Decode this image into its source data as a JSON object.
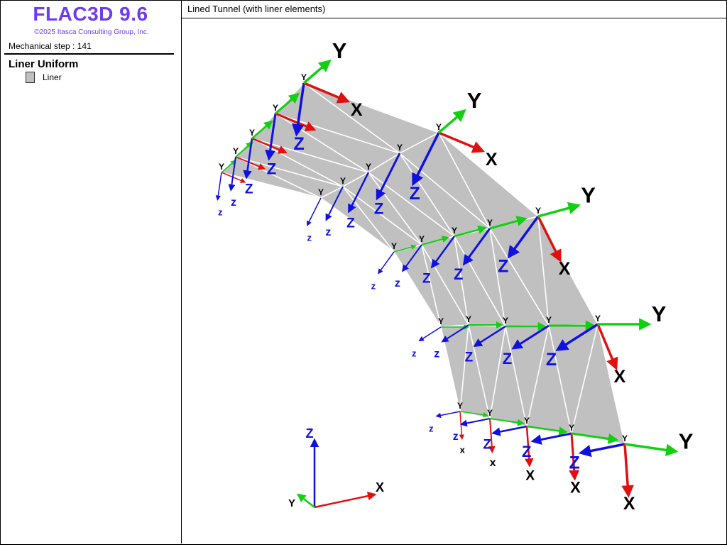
{
  "app": {
    "title": "FLAC3D 9.6",
    "copyright": "©2025 Itasca Consulting Group, Inc."
  },
  "sidebar": {
    "mechanical_step": "Mechanical step : 141",
    "legend_title": "Liner Uniform",
    "legend_items": [
      {
        "label": "Liner",
        "color": "#c0c0c0"
      }
    ]
  },
  "view": {
    "title": "Lined Tunnel (with liner elements)",
    "axis_labels": {
      "x": "X",
      "y": "Y",
      "z": "Z"
    },
    "colors": {
      "x_axis": "#e01010",
      "y_axis": "#10d010",
      "z_axis": "#1010e0",
      "liner": "#c0c0c0",
      "liner_edge": "#ffffff"
    }
  }
}
